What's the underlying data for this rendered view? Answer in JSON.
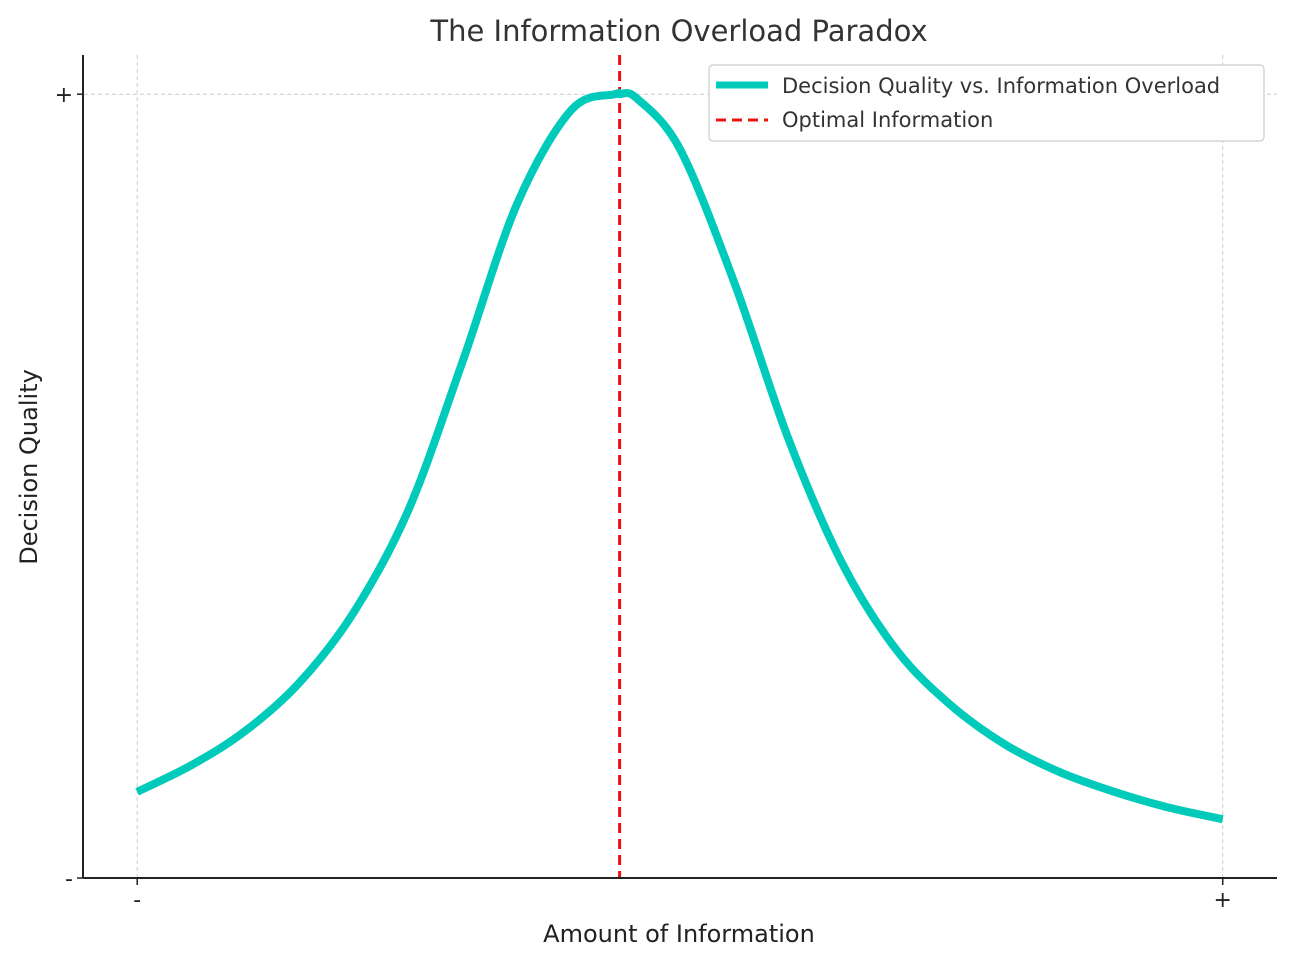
{
  "chart_data": {
    "type": "line",
    "title": "The Information Overload Paradox",
    "xlabel": "Amount of Information",
    "ylabel": "Decision Quality",
    "x_ticks": [
      {
        "value": 0,
        "label": "-"
      },
      {
        "value": 1,
        "label": "+"
      }
    ],
    "y_ticks": [
      {
        "value": 0,
        "label": "-"
      },
      {
        "value": 1,
        "label": "+"
      }
    ],
    "xlim": [
      -0.049,
      1.05
    ],
    "ylim": [
      0,
      1.05
    ],
    "grid": true,
    "legend_position": "upper-right",
    "series": [
      {
        "name": "Decision Quality vs. Information Overload",
        "style": "solid",
        "color": "#00cbbb",
        "x": [
          0.0,
          0.05,
          0.1,
          0.15,
          0.2,
          0.25,
          0.3,
          0.35,
          0.4,
          0.44,
          0.4444,
          0.46,
          0.5,
          0.55,
          0.6,
          0.65,
          0.7,
          0.75,
          0.8,
          0.85,
          0.9,
          0.95,
          1.0
        ],
        "y": [
          0.11,
          0.144,
          0.188,
          0.25,
          0.34,
          0.47,
          0.66,
          0.86,
          0.98,
          1.0,
          1.0,
          0.995,
          0.93,
          0.76,
          0.56,
          0.4,
          0.29,
          0.22,
          0.17,
          0.135,
          0.11,
          0.09,
          0.075
        ]
      },
      {
        "name": "Optimal Information",
        "style": "dashed",
        "color": "#ee1111",
        "x_value": 0.4444
      }
    ]
  }
}
